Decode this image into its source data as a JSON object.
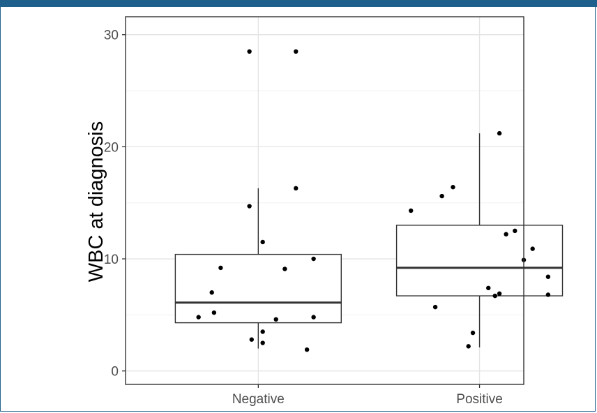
{
  "figure": {
    "header_color": "#1f5f8b"
  },
  "chart_data": {
    "type": "box",
    "title": "",
    "xlabel": "",
    "ylabel": "WBC at diagnosis",
    "ylim": [
      -1.2,
      31.6
    ],
    "yticks": [
      0,
      10,
      20,
      30
    ],
    "ytick_labels": [
      "0",
      "10",
      "20",
      "30"
    ],
    "grid": true,
    "legend": "none",
    "categories": [
      "Negative",
      "Positive"
    ],
    "boxes": [
      {
        "category": "Negative",
        "q1": 4.3,
        "median": 6.1,
        "q3": 10.4,
        "whisker_low": 2.0,
        "whisker_high": 16.3
      },
      {
        "category": "Positive",
        "q1": 6.7,
        "median": 9.2,
        "q3": 13.0,
        "whisker_low": 2.1,
        "whisker_high": 21.2
      }
    ],
    "points": [
      {
        "category": "Negative",
        "jitter": -0.04,
        "y": 28.5
      },
      {
        "category": "Negative",
        "jitter": 0.17,
        "y": 28.5
      },
      {
        "category": "Negative",
        "jitter": 0.17,
        "y": 16.3
      },
      {
        "category": "Negative",
        "jitter": -0.04,
        "y": 14.7
      },
      {
        "category": "Negative",
        "jitter": 0.02,
        "y": 11.5
      },
      {
        "category": "Negative",
        "jitter": 0.25,
        "y": 10.0
      },
      {
        "category": "Negative",
        "jitter": -0.17,
        "y": 9.2
      },
      {
        "category": "Negative",
        "jitter": 0.12,
        "y": 9.1
      },
      {
        "category": "Negative",
        "jitter": -0.21,
        "y": 7.0
      },
      {
        "category": "Negative",
        "jitter": -0.2,
        "y": 5.2
      },
      {
        "category": "Negative",
        "jitter": -0.27,
        "y": 4.8
      },
      {
        "category": "Negative",
        "jitter": 0.25,
        "y": 4.8
      },
      {
        "category": "Negative",
        "jitter": 0.08,
        "y": 4.6
      },
      {
        "category": "Negative",
        "jitter": 0.02,
        "y": 3.5
      },
      {
        "category": "Negative",
        "jitter": -0.03,
        "y": 2.8
      },
      {
        "category": "Negative",
        "jitter": 0.02,
        "y": 2.5
      },
      {
        "category": "Negative",
        "jitter": 0.22,
        "y": 1.9
      },
      {
        "category": "Positive",
        "jitter": 0.09,
        "y": 21.2
      },
      {
        "category": "Positive",
        "jitter": -0.12,
        "y": 16.4
      },
      {
        "category": "Positive",
        "jitter": -0.17,
        "y": 15.6
      },
      {
        "category": "Positive",
        "jitter": -0.31,
        "y": 14.3
      },
      {
        "category": "Positive",
        "jitter": 0.16,
        "y": 12.5
      },
      {
        "category": "Positive",
        "jitter": 0.12,
        "y": 12.2
      },
      {
        "category": "Positive",
        "jitter": 0.24,
        "y": 10.9
      },
      {
        "category": "Positive",
        "jitter": 0.2,
        "y": 9.9
      },
      {
        "category": "Positive",
        "jitter": 0.31,
        "y": 8.4
      },
      {
        "category": "Positive",
        "jitter": 0.04,
        "y": 7.4
      },
      {
        "category": "Positive",
        "jitter": 0.09,
        "y": 6.9
      },
      {
        "category": "Positive",
        "jitter": 0.07,
        "y": 6.7
      },
      {
        "category": "Positive",
        "jitter": 0.31,
        "y": 6.8
      },
      {
        "category": "Positive",
        "jitter": -0.2,
        "y": 5.7
      },
      {
        "category": "Positive",
        "jitter": -0.03,
        "y": 3.4
      },
      {
        "category": "Positive",
        "jitter": -0.05,
        "y": 2.2
      }
    ]
  }
}
